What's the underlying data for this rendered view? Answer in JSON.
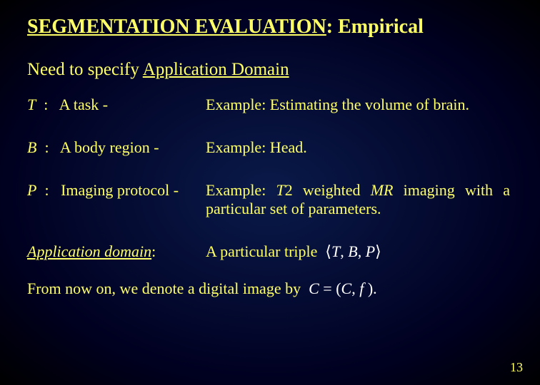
{
  "title_underlined": "SEGMENTATION EVALUATION",
  "title_rest": ": Empirical",
  "subhead_plain": "Need to specify ",
  "subhead_underlined": "Application Domain",
  "rows": {
    "t": {
      "sym": "T",
      "sep": ":",
      "label": "A task -",
      "example": "Example: Estimating the volume of brain."
    },
    "b": {
      "sym": "B",
      "sep": ":",
      "label": "A body region -",
      "example": "Example: Head."
    },
    "p": {
      "sym": "P",
      "sep": ":",
      "label": "Imaging protocol -",
      "example_pre": "Example: ",
      "example_it1": "T",
      "example_mid1": "2 weighted ",
      "example_it2": "MR",
      "example_post": " imaging with a particular set of parameters."
    }
  },
  "appdom": {
    "label": "Application domain",
    "colon": ":",
    "text": "A particular triple",
    "triple_open": "⟨",
    "triple_t": "T",
    "triple_c1": ", ",
    "triple_b": "B",
    "triple_c2": ", ",
    "triple_p": "P",
    "triple_close": "⟩"
  },
  "bottom": {
    "text": "From now on, we denote a digital image by",
    "eq_c1": "C",
    "eq_eq": " = (",
    "eq_c2": "C",
    "eq_comma": ", ",
    "eq_f": "f",
    "eq_close": " ).",
    "_note": "In the source slide the symbol rendered here as plain C is a script/calligraphic C."
  },
  "page_number": "13",
  "colors": {
    "text": "#ffff66",
    "math": "#ffffff",
    "bg_center": "#0a1a4a",
    "bg_edge": "#000000"
  },
  "fontsizes_pt": {
    "title": 21,
    "subhead": 19,
    "body": 17,
    "pagenum": 14
  }
}
